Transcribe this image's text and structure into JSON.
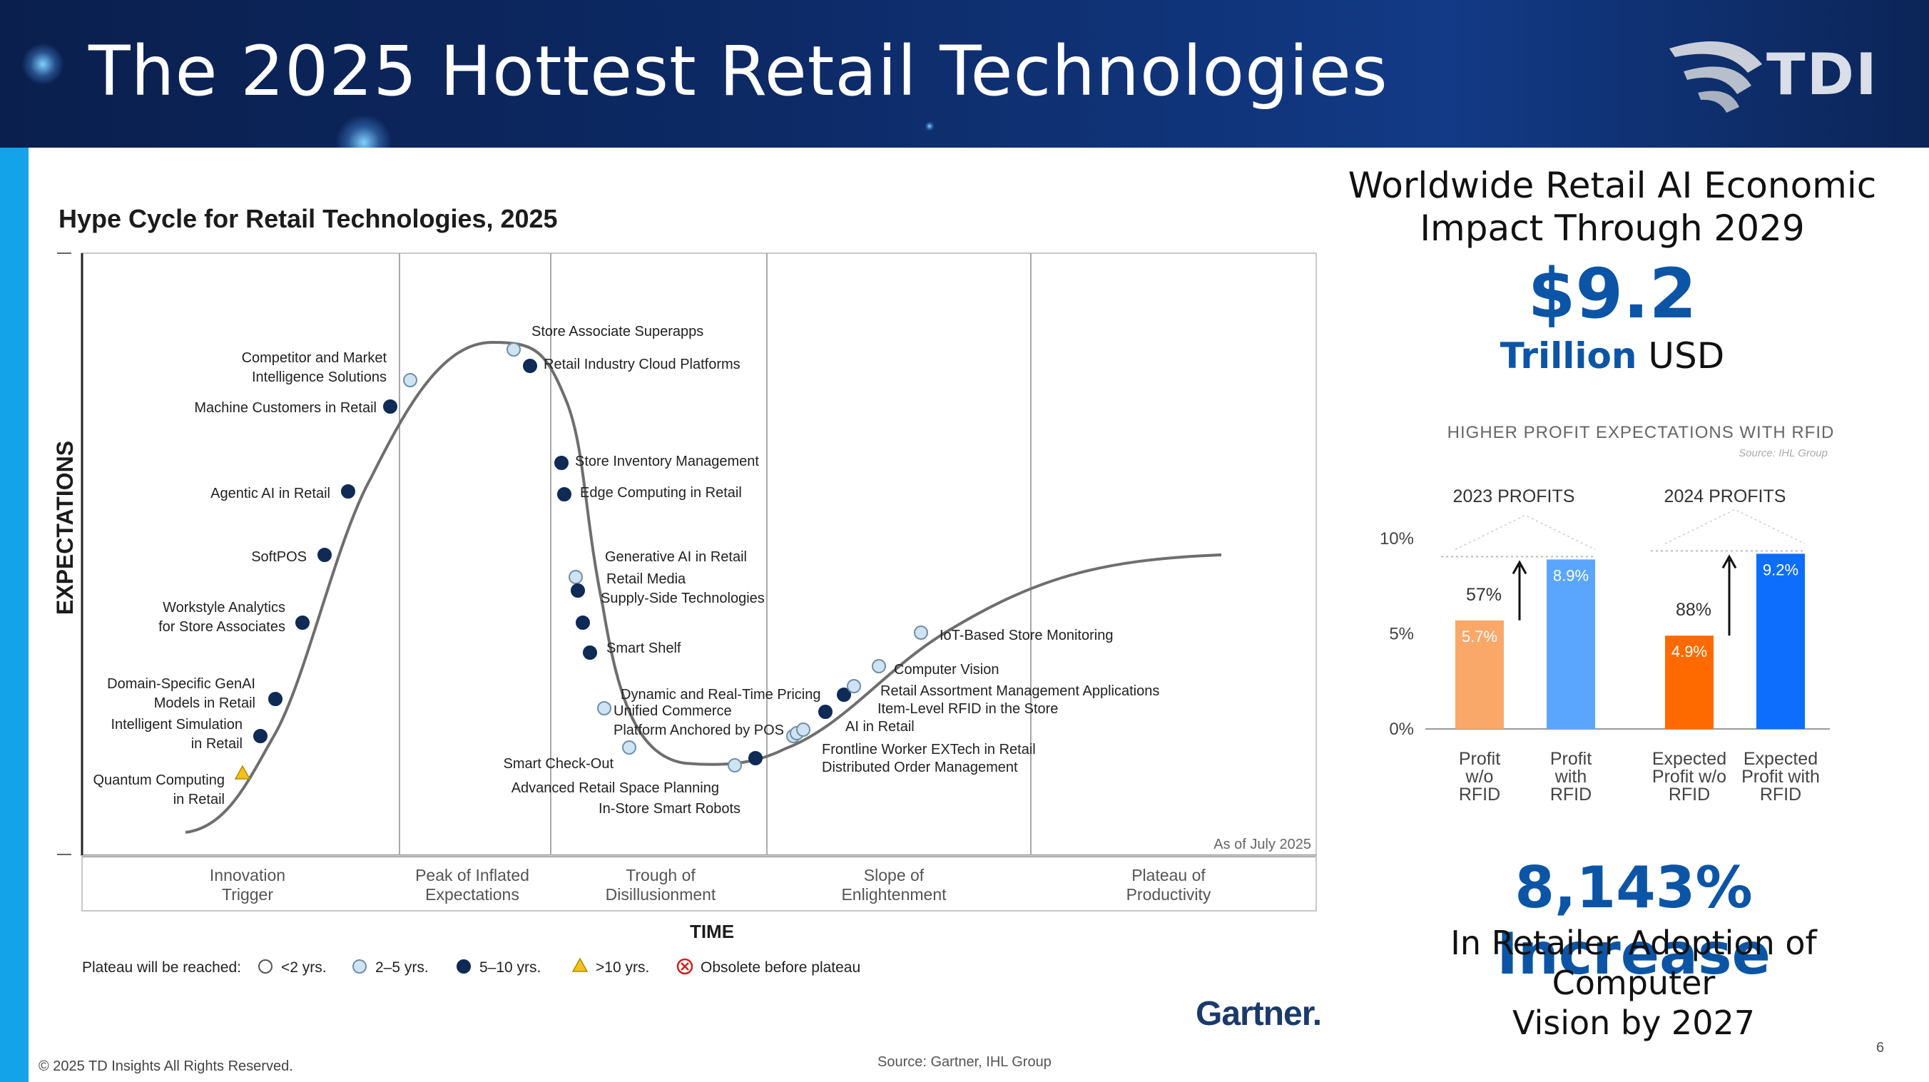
{
  "header": {
    "title": "The 2025 Hottest Retail Technologies",
    "logo_text": "TDI"
  },
  "hype_cycle": {
    "title": "Hype Cycle for Retail Technologies, 2025",
    "y_axis_label": "EXPECTATIONS",
    "x_axis_label": "TIME",
    "as_of": "As of July 2025",
    "phases": [
      [
        "Innovation",
        "Trigger"
      ],
      [
        "Peak of Inflated",
        "Expectations"
      ],
      [
        "Trough of",
        "Disillusionment"
      ],
      [
        "Slope of",
        "Enlightenment"
      ],
      [
        "Plateau of",
        "Productivity"
      ]
    ],
    "legend": {
      "prefix": "Plateau will be reached:",
      "items": [
        "<2 yrs.",
        "2–5 yrs.",
        "5–10 yrs.",
        ">10 yrs.",
        "Obsolete before plateau"
      ]
    },
    "technologies": [
      {
        "label": [
          "Quantum Computing",
          "in Retail"
        ],
        "category": ">10"
      },
      {
        "label": [
          "Intelligent Simulation",
          "in Retail"
        ],
        "category": "5-10"
      },
      {
        "label": [
          "Domain-Specific GenAI",
          "Models in Retail"
        ],
        "category": "5-10"
      },
      {
        "label": [
          "Workstyle Analytics",
          "for Store Associates"
        ],
        "category": "5-10"
      },
      {
        "label": [
          "SoftPOS"
        ],
        "category": "5-10"
      },
      {
        "label": [
          "Agentic AI in Retail"
        ],
        "category": "5-10"
      },
      {
        "label": [
          "Machine Customers in Retail"
        ],
        "category": "5-10"
      },
      {
        "label": [
          "Competitor and Market",
          "Intelligence Solutions"
        ],
        "category": "2-5"
      },
      {
        "label": [
          "Store Associate Superapps"
        ],
        "category": "2-5"
      },
      {
        "label": [
          "Retail Industry Cloud Platforms"
        ],
        "category": "5-10"
      },
      {
        "label": [
          "Store Inventory Management"
        ],
        "category": "5-10"
      },
      {
        "label": [
          "Edge Computing in Retail"
        ],
        "category": "5-10"
      },
      {
        "label": [
          "Generative AI in Retail"
        ],
        "category": "2-5"
      },
      {
        "label": [
          "Retail Media"
        ],
        "category": "5-10"
      },
      {
        "label": [
          "Supply-Side Technologies"
        ],
        "category": "5-10"
      },
      {
        "label": [
          "Smart Shelf"
        ],
        "category": "5-10"
      },
      {
        "label": [
          "Dynamic and Real-Time Pricing"
        ],
        "category": "2-5"
      },
      {
        "label": [
          "Unified Commerce",
          "Platform Anchored by POS"
        ],
        "category": "2-5"
      },
      {
        "label": [
          "Smart Check-Out"
        ],
        "category": "2-5"
      },
      {
        "label": [
          "Advanced Retail Space Planning"
        ],
        "category": "5-10"
      },
      {
        "label": [
          "In-Store Smart Robots"
        ],
        "category": "2-5"
      },
      {
        "label": [
          "Distributed Order Management"
        ],
        "category": "2-5"
      },
      {
        "label": [
          "Frontline Worker EXTech in Retail"
        ],
        "category": "2-5"
      },
      {
        "label": [
          "AI in Retail"
        ],
        "category": "5-10"
      },
      {
        "label": [
          "Item-Level RFID in the Store"
        ],
        "category": "5-10"
      },
      {
        "label": [
          "Retail Assortment Management Applications"
        ],
        "category": "2-5"
      },
      {
        "label": [
          "Computer Vision"
        ],
        "category": "2-5"
      },
      {
        "label": [
          "IoT-Based Store Monitoring"
        ],
        "category": "2-5"
      }
    ]
  },
  "impact": {
    "title_line1": "Worldwide Retail AI Economic",
    "title_line2": "Impact Through 2029",
    "value": "$9.2",
    "unit_bold": "Trillion",
    "unit": "USD"
  },
  "chart_data": {
    "type": "bar",
    "title": "HIGHER PROFIT EXPECTATIONS WITH RFID",
    "source": "Source: IHL Group",
    "groups": [
      "2023 PROFITS",
      "2024 PROFITS"
    ],
    "categories": [
      [
        "Profit",
        "w/o",
        "RFID"
      ],
      [
        "Profit",
        "with",
        "RFID"
      ],
      [
        "Expected",
        "Profit w/o",
        "RFID"
      ],
      [
        "Expected",
        "Profit with",
        "RFID"
      ]
    ],
    "values": [
      5.7,
      8.9,
      4.9,
      9.2
    ],
    "value_labels": [
      "5.7%",
      "8.9%",
      "4.9%",
      "9.2%"
    ],
    "colors": [
      "#f9a86a",
      "#5aa6ff",
      "#ff6a00",
      "#0d6efd"
    ],
    "increase_labels": [
      "57%",
      "88%"
    ],
    "yticks": [
      "0%",
      "5%",
      "10%"
    ],
    "ylim": [
      0,
      10
    ]
  },
  "adoption": {
    "value": "8,143% Increase",
    "line1": "In Retailer Adoption of Computer",
    "line2": "Vision by 2027"
  },
  "footer": {
    "copyright": "© 2025 TD Insights All Rights Reserved.",
    "source": "Source: Gartner, IHL Group",
    "brand": "Gartner.",
    "page": "6"
  }
}
